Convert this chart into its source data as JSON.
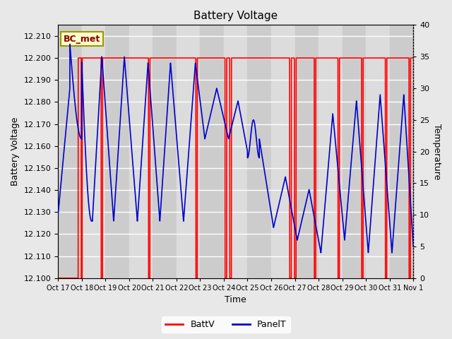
{
  "title": "Battery Voltage",
  "xlabel": "Time",
  "ylabel_left": "Battery Voltage",
  "ylabel_right": "Temperature",
  "ylim_left": [
    12.1,
    12.215
  ],
  "ylim_right": [
    0,
    40
  ],
  "yticks_left": [
    12.1,
    12.11,
    12.12,
    12.13,
    12.14,
    12.15,
    12.16,
    12.17,
    12.18,
    12.19,
    12.2,
    12.21
  ],
  "yticks_right": [
    0,
    5,
    10,
    15,
    20,
    25,
    30,
    35,
    40
  ],
  "xtick_labels": [
    "Oct 17",
    "Oct 18",
    "Oct 19",
    "Oct 20",
    "Oct 21",
    "Oct 22",
    "Oct 23",
    "Oct 24",
    "Oct 25",
    "Oct 26",
    "Oct 27",
    "Oct 28",
    "Oct 29",
    "Oct 30",
    "Oct 31",
    "Nov 1"
  ],
  "legend_label_bc": "BC_met",
  "legend_label_battv": "BattV",
  "legend_label_panelt": "PanelT",
  "battv_color": "#FF0000",
  "panelt_color": "#0000CC",
  "background_color": "#E8E8E8",
  "bc_met_bg": "#FFFFCC",
  "bc_met_border": "#999900",
  "grid_color": "#FFFFFF",
  "band_colors": [
    "#D8D8D8",
    "#E8E8E8"
  ]
}
